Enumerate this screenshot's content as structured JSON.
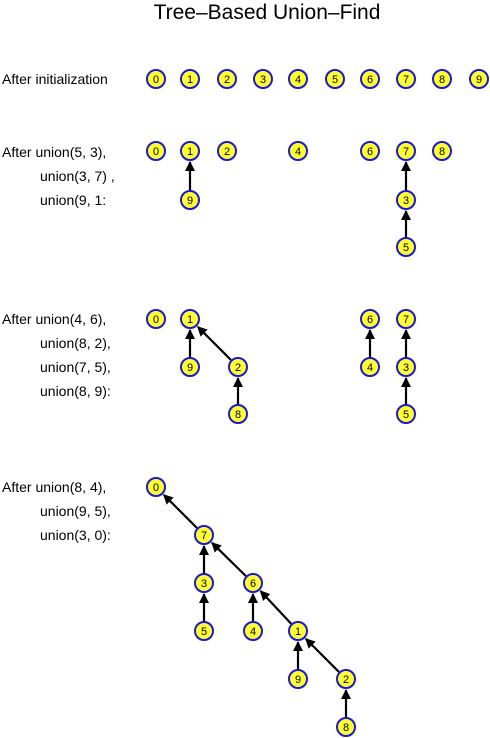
{
  "title": "Tree–Based Union–Find",
  "stages": [
    {
      "labels": [
        "After initialization"
      ],
      "nodes": [
        {
          "id": "0",
          "label": "0"
        },
        {
          "id": "1",
          "label": "1"
        },
        {
          "id": "2",
          "label": "2"
        },
        {
          "id": "3",
          "label": "3"
        },
        {
          "id": "4",
          "label": "4"
        },
        {
          "id": "5",
          "label": "5"
        },
        {
          "id": "6",
          "label": "6"
        },
        {
          "id": "7",
          "label": "7"
        },
        {
          "id": "8",
          "label": "8"
        },
        {
          "id": "9",
          "label": "9"
        }
      ],
      "edges": []
    },
    {
      "labels": [
        "After union(5, 3),",
        "union(3, 7) ,",
        "union(9, 1:"
      ],
      "nodes": [
        {
          "id": "0",
          "label": "0"
        },
        {
          "id": "1",
          "label": "1"
        },
        {
          "id": "2",
          "label": "2"
        },
        {
          "id": "4",
          "label": "4"
        },
        {
          "id": "6",
          "label": "6"
        },
        {
          "id": "7",
          "label": "7"
        },
        {
          "id": "8",
          "label": "8"
        },
        {
          "id": "9",
          "label": "9"
        },
        {
          "id": "3",
          "label": "3"
        },
        {
          "id": "5",
          "label": "5"
        }
      ],
      "edges": [
        {
          "from": "9",
          "to": "1"
        },
        {
          "from": "3",
          "to": "7"
        },
        {
          "from": "5",
          "to": "3"
        }
      ]
    },
    {
      "labels": [
        "After union(4, 6),",
        "union(8, 2),",
        "union(7, 5),",
        "union(8, 9):"
      ],
      "nodes": [
        {
          "id": "0",
          "label": "0"
        },
        {
          "id": "1",
          "label": "1"
        },
        {
          "id": "6",
          "label": "6"
        },
        {
          "id": "7",
          "label": "7"
        },
        {
          "id": "9",
          "label": "9"
        },
        {
          "id": "2",
          "label": "2"
        },
        {
          "id": "4",
          "label": "4"
        },
        {
          "id": "3",
          "label": "3"
        },
        {
          "id": "8",
          "label": "8"
        },
        {
          "id": "5",
          "label": "5"
        }
      ],
      "edges": [
        {
          "from": "9",
          "to": "1"
        },
        {
          "from": "2",
          "to": "1"
        },
        {
          "from": "8",
          "to": "2"
        },
        {
          "from": "4",
          "to": "6"
        },
        {
          "from": "3",
          "to": "7"
        },
        {
          "from": "5",
          "to": "3"
        }
      ]
    },
    {
      "labels": [
        "After union(8, 4),",
        "union(9, 5),",
        "union(3, 0):"
      ],
      "nodes": [
        {
          "id": "0",
          "label": "0"
        },
        {
          "id": "7",
          "label": "7"
        },
        {
          "id": "3",
          "label": "3"
        },
        {
          "id": "6",
          "label": "6"
        },
        {
          "id": "5",
          "label": "5"
        },
        {
          "id": "4",
          "label": "4"
        },
        {
          "id": "1",
          "label": "1"
        },
        {
          "id": "9",
          "label": "9"
        },
        {
          "id": "2",
          "label": "2"
        },
        {
          "id": "8",
          "label": "8"
        }
      ],
      "edges": [
        {
          "from": "7",
          "to": "0"
        },
        {
          "from": "3",
          "to": "7"
        },
        {
          "from": "6",
          "to": "7"
        },
        {
          "from": "5",
          "to": "3"
        },
        {
          "from": "4",
          "to": "6"
        },
        {
          "from": "1",
          "to": "6"
        },
        {
          "from": "9",
          "to": "1"
        },
        {
          "from": "2",
          "to": "1"
        },
        {
          "from": "8",
          "to": "2"
        }
      ]
    }
  ]
}
